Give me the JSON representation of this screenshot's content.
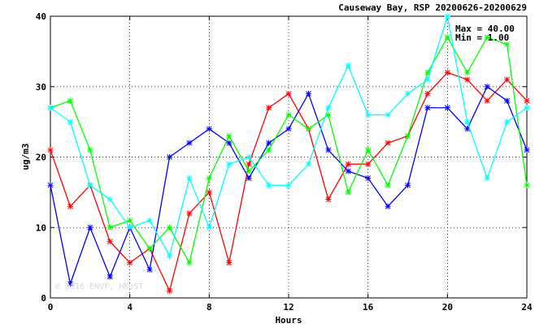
{
  "chart_data": {
    "type": "line",
    "title": "Causeway Bay, RSP 20200626-20200629",
    "xlabel": "Hours",
    "ylabel": "ug/m3",
    "xlim": [
      0,
      24
    ],
    "ylim": [
      0,
      40
    ],
    "xticks": [
      0,
      4,
      8,
      12,
      16,
      20,
      24
    ],
    "yticks": [
      0,
      10,
      20,
      30,
      40
    ],
    "grid": true,
    "stats": {
      "max": "Max = 40.00",
      "min": "Min = 1.00"
    },
    "watermark": "© 2016 ENVF, HKUST",
    "x": [
      0,
      1,
      2,
      3,
      4,
      5,
      6,
      7,
      8,
      9,
      10,
      11,
      12,
      13,
      14,
      15,
      16,
      17,
      18,
      19,
      20,
      21,
      22,
      23,
      24
    ],
    "series": [
      {
        "color": "#ff0000",
        "values": [
          21,
          13,
          16,
          8,
          5,
          7,
          1,
          12,
          15,
          5,
          19,
          27,
          29,
          24,
          14,
          19,
          19,
          22,
          23,
          29,
          32,
          31,
          28,
          31,
          28
        ]
      },
      {
        "color": "#0000ff",
        "values": [
          16,
          2,
          10,
          3,
          10,
          4,
          20,
          22,
          24,
          22,
          17,
          22,
          24,
          29,
          21,
          18,
          17,
          13,
          16,
          27,
          27,
          24,
          30,
          28,
          21
        ]
      },
      {
        "color": "#00ff00",
        "values": [
          27,
          28,
          21,
          10,
          11,
          7,
          10,
          5,
          17,
          23,
          18,
          21,
          26,
          24,
          26,
          15,
          21,
          16,
          23,
          32,
          37,
          32,
          37,
          36,
          16
        ]
      },
      {
        "color": "#00ffff",
        "values": [
          27,
          25,
          16,
          14,
          10,
          11,
          6,
          17,
          10,
          19,
          20,
          16,
          16,
          19,
          27,
          33,
          26,
          26,
          29,
          31,
          40,
          25,
          17,
          25,
          27
        ]
      }
    ]
  }
}
